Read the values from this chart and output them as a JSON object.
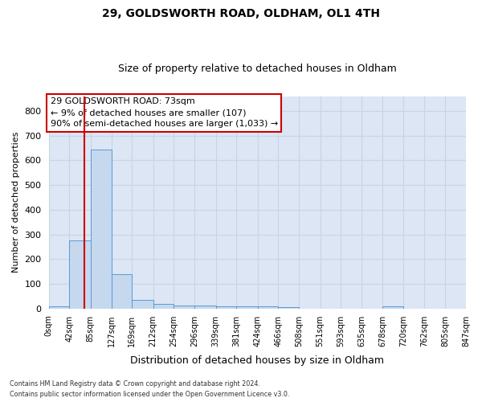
{
  "title1": "29, GOLDSWORTH ROAD, OLDHAM, OL1 4TH",
  "title2": "Size of property relative to detached houses in Oldham",
  "xlabel": "Distribution of detached houses by size in Oldham",
  "ylabel": "Number of detached properties",
  "footer1": "Contains HM Land Registry data © Crown copyright and database right 2024.",
  "footer2": "Contains public sector information licensed under the Open Government Licence v3.0.",
  "annotation_line1": "29 GOLDSWORTH ROAD: 73sqm",
  "annotation_line2": "← 9% of detached houses are smaller (107)",
  "annotation_line3": "90% of semi-detached houses are larger (1,033) →",
  "bin_edges": [
    0,
    42,
    85,
    127,
    169,
    212,
    254,
    296,
    339,
    381,
    424,
    466,
    508,
    551,
    593,
    635,
    678,
    720,
    762,
    805,
    847
  ],
  "bin_labels": [
    "0sqm",
    "42sqm",
    "85sqm",
    "127sqm",
    "169sqm",
    "212sqm",
    "254sqm",
    "296sqm",
    "339sqm",
    "381sqm",
    "424sqm",
    "466sqm",
    "508sqm",
    "551sqm",
    "593sqm",
    "635sqm",
    "678sqm",
    "720sqm",
    "762sqm",
    "805sqm",
    "847sqm"
  ],
  "counts": [
    10,
    275,
    645,
    140,
    35,
    20,
    13,
    12,
    10,
    10,
    8,
    5,
    1,
    1,
    1,
    1,
    8,
    1,
    1,
    1
  ],
  "bar_color": "#c5d8ee",
  "bar_edge_color": "#5b9bd5",
  "vline_color": "#cc0000",
  "vline_x": 73,
  "ann_box_color": "#cc0000",
  "grid_color": "#c8d4e4",
  "bg_color": "#dce6f4",
  "ylim_max": 860,
  "yticks": [
    0,
    100,
    200,
    300,
    400,
    500,
    600,
    700,
    800
  ]
}
